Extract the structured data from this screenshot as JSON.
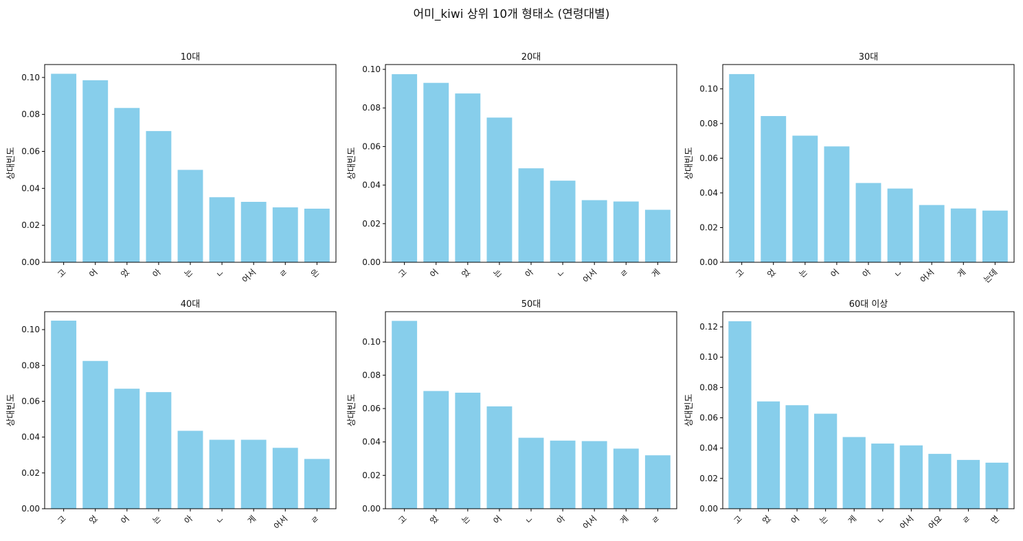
{
  "suptitle": "어미_kiwi 상위 10개 형태소 (연령대별)",
  "colors": {
    "bar": "#87ceeb",
    "axis": "#000000"
  },
  "chart_data": [
    {
      "type": "bar",
      "title": "10대",
      "ylabel": "상대빈도",
      "xlabel": "",
      "categories": [
        "고",
        "어",
        "었",
        "아",
        "는",
        "ㄴ",
        "어서",
        "ㄹ",
        "은"
      ],
      "values": [
        0.102,
        0.0985,
        0.0835,
        0.071,
        0.05,
        0.0352,
        0.0327,
        0.0297,
        0.029
      ],
      "ylim": [
        0,
        0.107
      ],
      "yticks": [
        0.0,
        0.02,
        0.04,
        0.06,
        0.08,
        0.1
      ],
      "ytick_labels": [
        "0.00",
        "0.02",
        "0.04",
        "0.06",
        "0.08",
        "0.10"
      ]
    },
    {
      "type": "bar",
      "title": "20대",
      "ylabel": "상대빈도",
      "xlabel": "",
      "categories": [
        "고",
        "어",
        "었",
        "는",
        "아",
        "ㄴ",
        "어서",
        "ㄹ",
        "게"
      ],
      "values": [
        0.0975,
        0.093,
        0.0875,
        0.075,
        0.0487,
        0.0423,
        0.0322,
        0.0315,
        0.0272
      ],
      "ylim": [
        0,
        0.1025
      ],
      "yticks": [
        0.0,
        0.02,
        0.04,
        0.06,
        0.08,
        0.1
      ],
      "ytick_labels": [
        "0.00",
        "0.02",
        "0.04",
        "0.06",
        "0.08",
        "0.10"
      ]
    },
    {
      "type": "bar",
      "title": "30대",
      "ylabel": "상대빈도",
      "xlabel": "",
      "categories": [
        "고",
        "었",
        "는",
        "어",
        "아",
        "ㄴ",
        "어서",
        "게",
        "는데"
      ],
      "values": [
        0.1085,
        0.0843,
        0.073,
        0.0668,
        0.0457,
        0.0425,
        0.033,
        0.031,
        0.0298
      ],
      "ylim": [
        0,
        0.114
      ],
      "yticks": [
        0.0,
        0.02,
        0.04,
        0.06,
        0.08,
        0.1
      ],
      "ytick_labels": [
        "0.00",
        "0.02",
        "0.04",
        "0.06",
        "0.08",
        "0.10"
      ]
    },
    {
      "type": "bar",
      "title": "40대",
      "ylabel": "상대빈도",
      "xlabel": "",
      "categories": [
        "고",
        "었",
        "어",
        "는",
        "아",
        "ㄴ",
        "게",
        "어서",
        "ㄹ"
      ],
      "values": [
        0.105,
        0.0825,
        0.067,
        0.0651,
        0.0435,
        0.0385,
        0.0385,
        0.034,
        0.0278
      ],
      "ylim": [
        0,
        0.11
      ],
      "yticks": [
        0.0,
        0.02,
        0.04,
        0.06,
        0.08,
        0.1
      ],
      "ytick_labels": [
        "0.00",
        "0.02",
        "0.04",
        "0.06",
        "0.08",
        "0.10"
      ]
    },
    {
      "type": "bar",
      "title": "50대",
      "ylabel": "상대빈도",
      "xlabel": "",
      "categories": [
        "고",
        "었",
        "는",
        "어",
        "ㄴ",
        "아",
        "어서",
        "게",
        "ㄹ"
      ],
      "values": [
        0.1125,
        0.0705,
        0.0695,
        0.0613,
        0.0425,
        0.0408,
        0.0405,
        0.036,
        0.032
      ],
      "ylim": [
        0,
        0.118
      ],
      "yticks": [
        0.0,
        0.02,
        0.04,
        0.06,
        0.08,
        0.1
      ],
      "ytick_labels": [
        "0.00",
        "0.02",
        "0.04",
        "0.06",
        "0.08",
        "0.10"
      ]
    },
    {
      "type": "bar",
      "title": "60대 이상",
      "ylabel": "상대빈도",
      "xlabel": "",
      "categories": [
        "고",
        "었",
        "어",
        "는",
        "게",
        "ㄴ",
        "어서",
        "어요",
        "ㄹ",
        "면"
      ],
      "values": [
        0.1237,
        0.0708,
        0.0683,
        0.0627,
        0.0473,
        0.043,
        0.0418,
        0.0362,
        0.0322,
        0.0304
      ],
      "ylim": [
        0,
        0.13
      ],
      "yticks": [
        0.0,
        0.02,
        0.04,
        0.06,
        0.08,
        0.1,
        0.12
      ],
      "ytick_labels": [
        "0.00",
        "0.02",
        "0.04",
        "0.06",
        "0.08",
        "0.10",
        "0.12"
      ]
    }
  ]
}
